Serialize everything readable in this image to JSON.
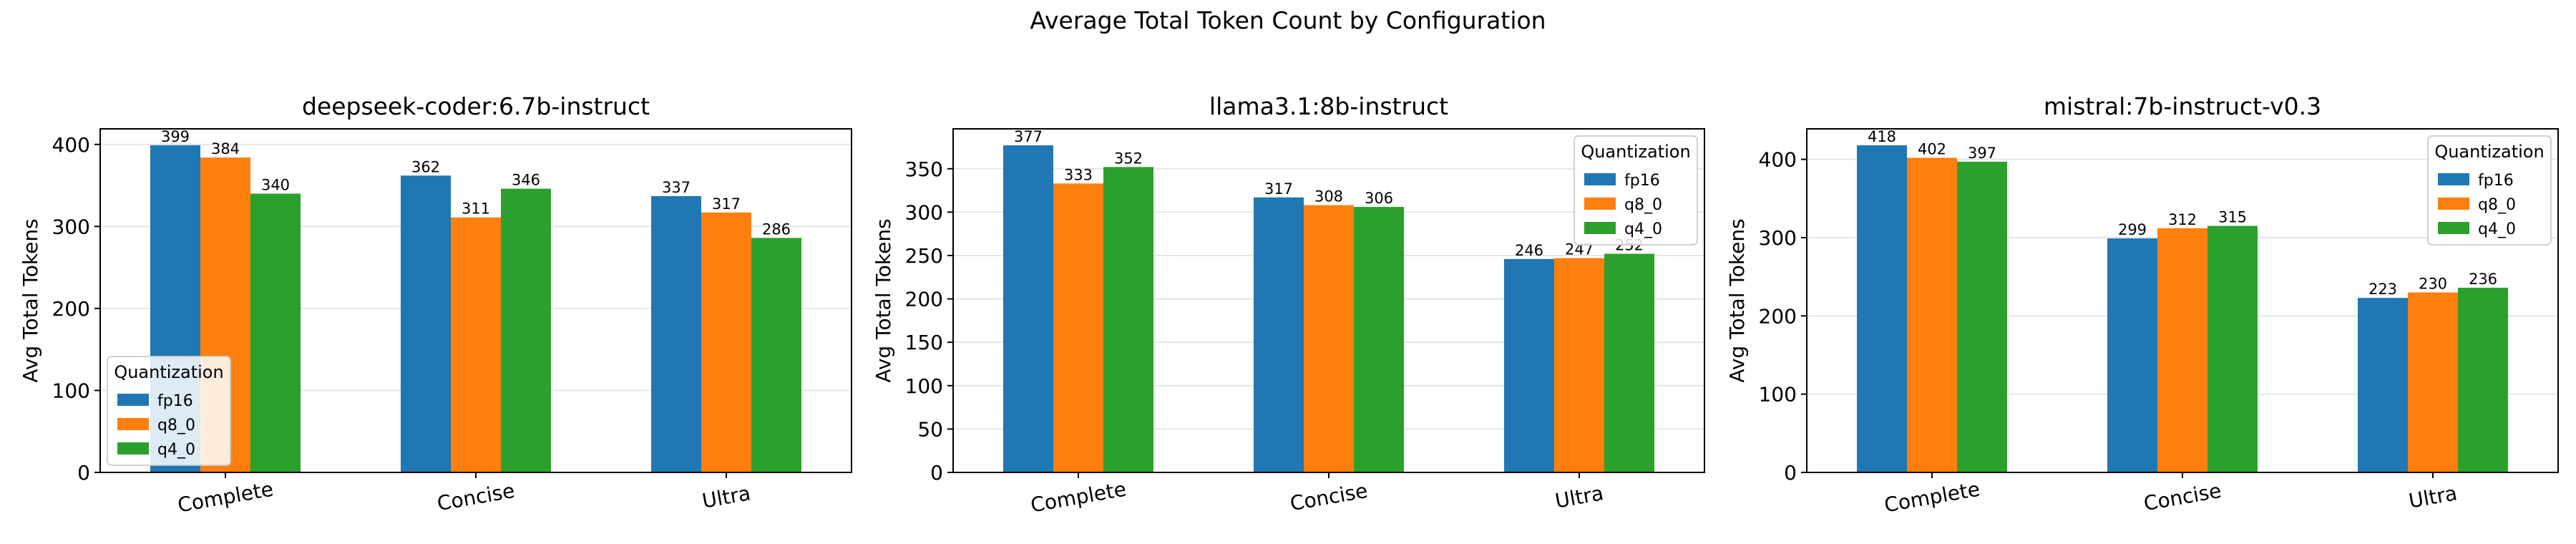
{
  "figure": {
    "suptitle": "Average Total Token Count by Configuration"
  },
  "colors": {
    "fp16": "#1f77b4",
    "q8_0": "#ff7f0e",
    "q4_0": "#2ca02c"
  },
  "chart_data": [
    {
      "type": "bar",
      "title": "deepseek-coder:6.7b-instruct",
      "xlabel": "",
      "ylabel": "Avg Total Tokens",
      "categories": [
        "Complete",
        "Concise",
        "Ultra"
      ],
      "ylim": [
        0,
        419
      ],
      "yticks": [
        0,
        100,
        200,
        300,
        400
      ],
      "grid": "y",
      "legend": {
        "title": "Quantization",
        "placement": "lower-left"
      },
      "series": [
        {
          "name": "fp16",
          "values": [
            399,
            362,
            337
          ]
        },
        {
          "name": "q8_0",
          "values": [
            384,
            311,
            317
          ]
        },
        {
          "name": "q4_0",
          "values": [
            340,
            346,
            286
          ]
        }
      ]
    },
    {
      "type": "bar",
      "title": "llama3.1:8b-instruct",
      "xlabel": "",
      "ylabel": "Avg Total Tokens",
      "categories": [
        "Complete",
        "Concise",
        "Ultra"
      ],
      "ylim": [
        0,
        396
      ],
      "yticks": [
        0,
        50,
        100,
        150,
        200,
        250,
        300,
        350
      ],
      "grid": "y",
      "legend": {
        "title": "Quantization",
        "placement": "upper-right"
      },
      "series": [
        {
          "name": "fp16",
          "values": [
            377,
            317,
            246
          ]
        },
        {
          "name": "q8_0",
          "values": [
            333,
            308,
            247
          ]
        },
        {
          "name": "q4_0",
          "values": [
            352,
            306,
            252
          ]
        }
      ]
    },
    {
      "type": "bar",
      "title": "mistral:7b-instruct-v0.3",
      "xlabel": "",
      "ylabel": "Avg Total Tokens",
      "categories": [
        "Complete",
        "Concise",
        "Ultra"
      ],
      "ylim": [
        0,
        439
      ],
      "yticks": [
        0,
        100,
        200,
        300,
        400
      ],
      "grid": "y",
      "legend": {
        "title": "Quantization",
        "placement": "upper-right"
      },
      "series": [
        {
          "name": "fp16",
          "values": [
            418,
            299,
            223
          ]
        },
        {
          "name": "q8_0",
          "values": [
            402,
            312,
            230
          ]
        },
        {
          "name": "q4_0",
          "values": [
            397,
            315,
            236
          ]
        }
      ]
    }
  ]
}
